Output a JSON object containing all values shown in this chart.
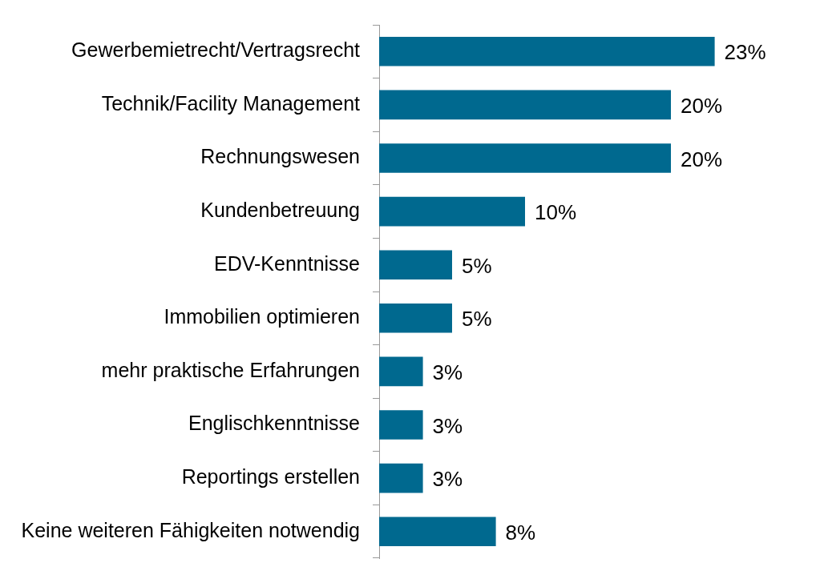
{
  "chart_data": {
    "type": "bar",
    "orientation": "horizontal",
    "categories": [
      "Gewerbemietrecht/Vertragsrecht",
      "Technik/Facility Management",
      "Rechnungswesen",
      "Kundenbetreuung",
      "EDV-Kenntnisse",
      "Immobilien optimieren",
      "mehr praktische Erfahrungen",
      "Englischkenntnisse",
      "Reportings erstellen",
      "Keine weiteren Fähigkeiten notwendig"
    ],
    "values": [
      23,
      20,
      20,
      10,
      5,
      5,
      3,
      3,
      3,
      8
    ],
    "value_labels": [
      "23%",
      "20%",
      "20%",
      "10%",
      "5%",
      "5%",
      "3%",
      "3%",
      "3%",
      "8%"
    ],
    "color": "#00698f"
  }
}
